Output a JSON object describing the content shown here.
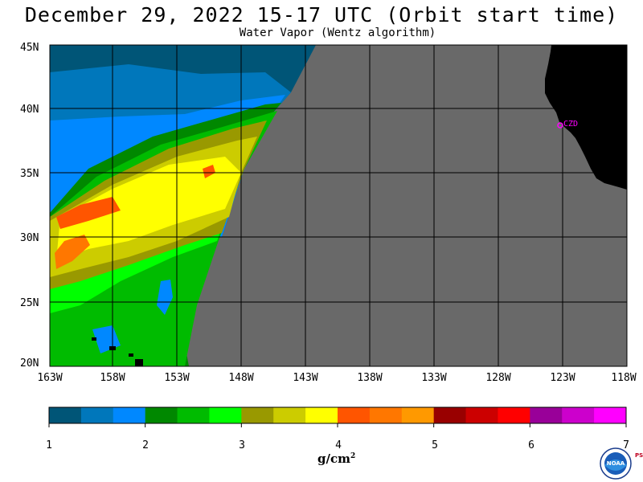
{
  "title": "December 29, 2022  15-17 UTC  (Orbit start time)",
  "subtitle": "Water Vapor (Wentz algorithm)",
  "map": {
    "lat_labels": [
      "45N",
      "40N",
      "35N",
      "30N",
      "25N",
      "20N"
    ],
    "lon_labels": [
      "163W",
      "158W",
      "153W",
      "148W",
      "143W",
      "138W",
      "133W",
      "128W",
      "123W",
      "118W"
    ],
    "station_label": "CZD",
    "colors": {
      "no_data": "#696969",
      "land": "#000000",
      "station": "#ff00ff",
      "grid": "#000000"
    }
  },
  "colorbar": {
    "unit_base": "g/cm",
    "unit_exp": "2",
    "tick_labels": [
      "1",
      "2",
      "3",
      "4",
      "5",
      "6",
      "7"
    ],
    "colors": [
      "#005577",
      "#0077bb",
      "#0088ff",
      "#008800",
      "#00bb00",
      "#00ff00",
      "#999900",
      "#cccc00",
      "#ffff00",
      "#ff5500",
      "#ff7700",
      "#ff9900",
      "#990000",
      "#cc0000",
      "#ff0000",
      "#990099",
      "#cc00cc",
      "#ff00ff"
    ]
  },
  "logo": {
    "text": "NOAA",
    "side_text": "PSL"
  }
}
